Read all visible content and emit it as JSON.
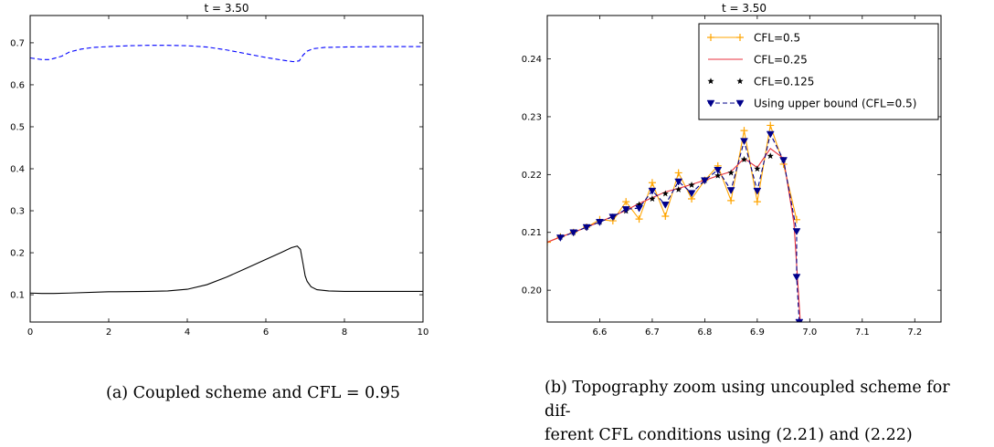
{
  "captions": {
    "a": "(a) Coupled scheme and CFL = 0.95",
    "b_line1": "(b) Topography zoom using uncoupled scheme for dif-",
    "b_line2": "ferent CFL conditions using (2.21) and (2.22)"
  },
  "chart_data": [
    {
      "type": "line",
      "title": "t = 3.50",
      "xlabel": "",
      "ylabel": "",
      "xlim": [
        0,
        10
      ],
      "ylim": [
        0.035,
        0.765
      ],
      "xticks": [
        0,
        2,
        4,
        6,
        8,
        10
      ],
      "xtick_labels": [
        "0",
        "2",
        "4",
        "6",
        "8",
        "10"
      ],
      "yticks": [
        0.1,
        0.2,
        0.3,
        0.4,
        0.5,
        0.6,
        0.7
      ],
      "ytick_labels": [
        "0.1",
        "0.2",
        "0.3",
        "0.4",
        "0.5",
        "0.6",
        "0.7"
      ],
      "grid": false,
      "series": [
        {
          "color": "#0000ff",
          "dash": "dashed",
          "x": [
            0,
            0.3,
            0.5,
            0.8,
            1.0,
            1.3,
            1.6,
            2.0,
            2.5,
            3.0,
            3.5,
            4.0,
            4.5,
            5.0,
            5.5,
            6.0,
            6.4,
            6.7,
            6.85,
            6.95,
            7.05,
            7.2,
            7.5,
            8.0,
            9.0,
            10.0
          ],
          "y": [
            0.664,
            0.66,
            0.66,
            0.668,
            0.678,
            0.685,
            0.689,
            0.691,
            0.693,
            0.694,
            0.694,
            0.693,
            0.69,
            0.683,
            0.674,
            0.665,
            0.659,
            0.655,
            0.657,
            0.671,
            0.68,
            0.686,
            0.689,
            0.69,
            0.691,
            0.691
          ]
        },
        {
          "color": "#000000",
          "dash": "solid",
          "x": [
            0,
            0.3,
            0.6,
            1.0,
            2.0,
            3.0,
            3.5,
            4.0,
            4.5,
            5.0,
            5.5,
            6.0,
            6.4,
            6.65,
            6.8,
            6.88,
            6.95,
            7.0,
            7.05,
            7.15,
            7.3,
            7.6,
            8.0,
            9.0,
            10.0
          ],
          "y": [
            0.104,
            0.103,
            0.103,
            0.104,
            0.107,
            0.108,
            0.109,
            0.113,
            0.124,
            0.142,
            0.163,
            0.184,
            0.201,
            0.212,
            0.216,
            0.208,
            0.172,
            0.145,
            0.132,
            0.119,
            0.112,
            0.109,
            0.108,
            0.108,
            0.108
          ]
        }
      ]
    },
    {
      "type": "line",
      "title": "t = 3.50",
      "xlabel": "",
      "ylabel": "",
      "xlim": [
        6.5,
        7.25
      ],
      "ylim": [
        0.1945,
        0.2475
      ],
      "xticks": [
        6.6,
        6.7,
        6.8,
        6.9,
        7.0,
        7.1,
        7.2
      ],
      "xtick_labels": [
        "6.6",
        "6.7",
        "6.8",
        "6.9",
        "7.0",
        "7.1",
        "7.2"
      ],
      "yticks": [
        0.2,
        0.21,
        0.22,
        0.23,
        0.24
      ],
      "ytick_labels": [
        "0.20",
        "0.21",
        "0.22",
        "0.23",
        "0.24"
      ],
      "grid": false,
      "legend_position": "top-right",
      "series": [
        {
          "name": "CFL=0.5",
          "color": "#ffa500",
          "marker": "plus",
          "dash": "solid",
          "x": [
            6.5,
            6.525,
            6.55,
            6.575,
            6.6,
            6.625,
            6.65,
            6.675,
            6.7,
            6.725,
            6.75,
            6.775,
            6.8,
            6.825,
            6.85,
            6.875,
            6.9,
            6.925,
            6.95,
            6.975
          ],
          "y": [
            0.2083,
            0.2092,
            0.21,
            0.2109,
            0.2122,
            0.212,
            0.2153,
            0.2123,
            0.2186,
            0.2128,
            0.2203,
            0.2158,
            0.219,
            0.2215,
            0.2155,
            0.2276,
            0.2153,
            0.2285,
            0.2218,
            0.2122
          ]
        },
        {
          "name": "CFL=0.25",
          "color": "#e8323c",
          "marker": "none",
          "dash": "solid",
          "x": [
            6.5,
            6.525,
            6.55,
            6.575,
            6.6,
            6.625,
            6.65,
            6.675,
            6.7,
            6.725,
            6.75,
            6.775,
            6.8,
            6.825,
            6.85,
            6.875,
            6.9,
            6.925,
            6.95,
            6.97,
            6.982
          ],
          "y": [
            0.2083,
            0.2092,
            0.21,
            0.2109,
            0.2118,
            0.2128,
            0.2138,
            0.215,
            0.216,
            0.217,
            0.2176,
            0.2183,
            0.219,
            0.2198,
            0.2205,
            0.2228,
            0.2212,
            0.2245,
            0.2228,
            0.2115,
            0.1945
          ]
        },
        {
          "name": "CFL=0.125",
          "color": "#000000",
          "marker": "star",
          "dash": "none",
          "x": [
            6.525,
            6.55,
            6.575,
            6.6,
            6.625,
            6.65,
            6.675,
            6.7,
            6.725,
            6.75,
            6.775,
            6.8,
            6.825,
            6.85,
            6.875,
            6.9,
            6.925,
            6.95
          ],
          "y": [
            0.2092,
            0.21,
            0.2109,
            0.2118,
            0.2127,
            0.2137,
            0.2148,
            0.2158,
            0.2167,
            0.2174,
            0.2182,
            0.219,
            0.2198,
            0.2203,
            0.2226,
            0.221,
            0.2232,
            0.2225
          ]
        },
        {
          "name": "Using upper bound (CFL=0.5)",
          "color": "#00008b",
          "marker": "triangle-down",
          "dash": "dashed",
          "x": [
            6.525,
            6.55,
            6.575,
            6.6,
            6.625,
            6.65,
            6.675,
            6.7,
            6.725,
            6.75,
            6.775,
            6.8,
            6.825,
            6.85,
            6.875,
            6.9,
            6.925,
            6.95,
            6.975,
            6.975,
            6.98
          ],
          "y": [
            0.2091,
            0.21,
            0.2109,
            0.2118,
            0.2127,
            0.214,
            0.2142,
            0.2172,
            0.2148,
            0.2188,
            0.2168,
            0.219,
            0.2208,
            0.2173,
            0.2258,
            0.2172,
            0.227,
            0.2225,
            0.2102,
            0.2023,
            0.1945
          ]
        }
      ]
    }
  ]
}
